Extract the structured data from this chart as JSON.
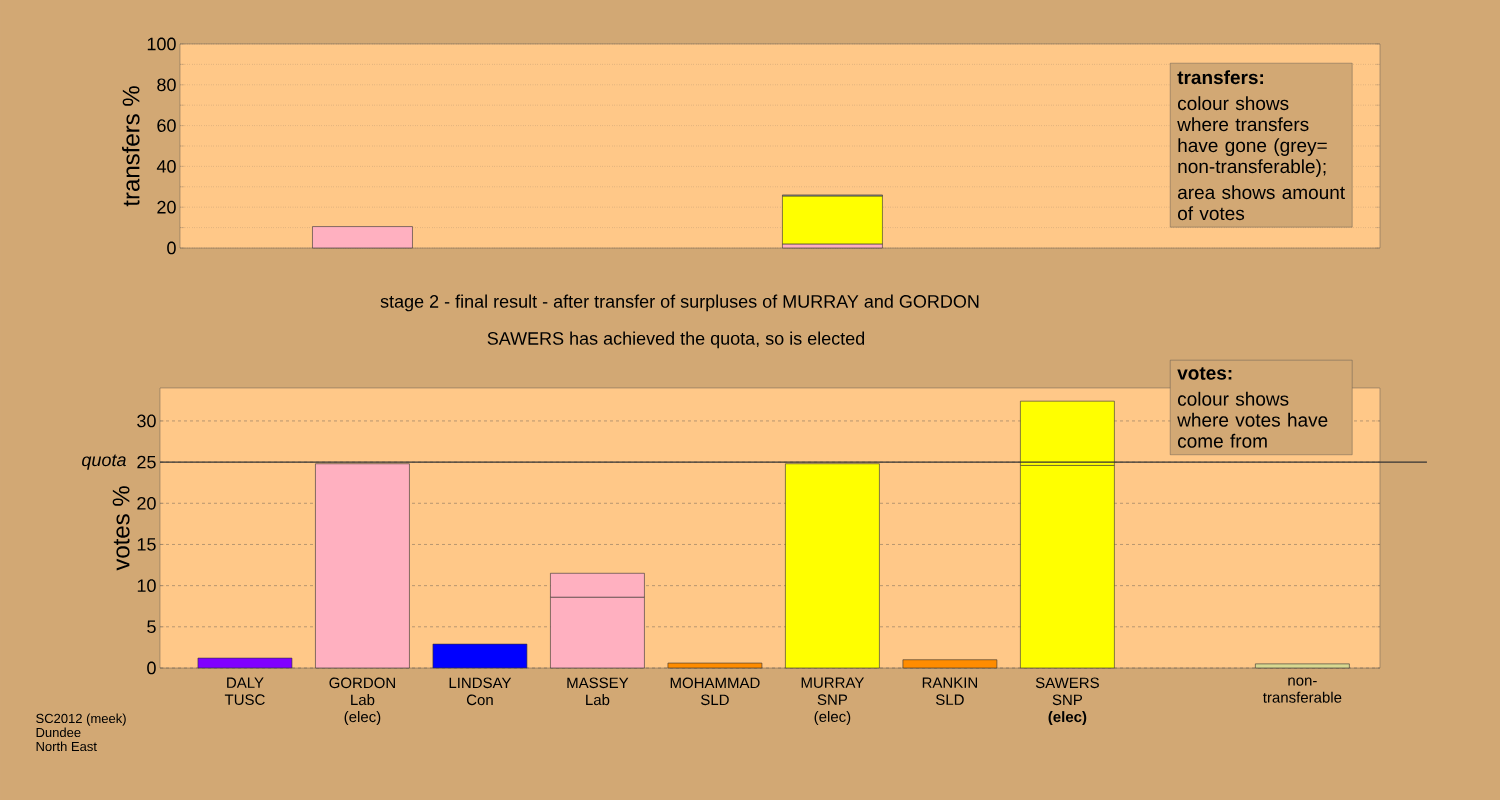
{
  "chart_data": [
    {
      "type": "bar",
      "stacked": true,
      "ylabel": "transfers %",
      "categories": [
        null,
        null,
        null,
        null,
        null,
        null,
        null,
        null,
        null,
        null
      ],
      "series": [
        {
          "color": "#ffb0c0",
          "values": [
            null,
            10.5,
            null,
            null,
            null,
            2,
            null,
            null,
            null,
            null
          ]
        },
        {
          "color": "#ffff00",
          "values": [
            null,
            null,
            null,
            null,
            null,
            23.5,
            null,
            null,
            null,
            null
          ]
        },
        {
          "color": "#a0a0a0",
          "values": [
            null,
            null,
            null,
            null,
            null,
            0.5,
            null,
            null,
            null,
            null
          ]
        }
      ],
      "ylim": [
        0,
        100
      ],
      "yticks": [
        0,
        {
          "value": 10,
          "label": null
        },
        20,
        {
          "value": 30,
          "label": null
        },
        40,
        {
          "value": 50,
          "label": null
        },
        60,
        {
          "value": 70,
          "label": null
        },
        80,
        {
          "value": 90,
          "label": null
        },
        100
      ],
      "grid": "y",
      "tick_labels": "y",
      "annotations": [
        "transfers:",
        "colour shows where transfers have gone (grey= non-transferable);",
        "area shows amount of votes"
      ]
    },
    {
      "type": "bar",
      "stacked": true,
      "title": "stage 2 - final result - after transfer of surpluses of MURRAY and GORDON",
      "subtitle": "SAWERS has achieved the quota, so is elected",
      "ylabel": "votes %",
      "categories": [
        "DALY\nTUSC",
        "GORDON\nLab\n(elec)",
        "LINDSAY\nCon",
        "MASSEY\nLab",
        "MOHAMMAD\nSLD",
        "MURRAY\nSNP\n(elec)",
        "RANKIN\nSLD",
        "SAWERS\nSNP\n**(elec)**",
        null,
        "non-transferable"
      ],
      "series": [
        {
          "colors": [
            "#8000ff",
            "#ffb0c0",
            "#0000ff",
            "#ffb0c0",
            "#ff8c00",
            "#ffff00",
            "#ff8c00",
            "#ffff00",
            null,
            "#d8d890"
          ],
          "values": [
            1.2,
            24.8,
            2.9,
            8.6,
            0.6,
            24.8,
            1.0,
            24.6,
            null,
            0.5
          ]
        },
        {
          "colors": [
            null,
            null,
            null,
            "#ffb0c0",
            null,
            null,
            null,
            "#ffff00",
            null,
            null
          ],
          "values": [
            null,
            null,
            null,
            2.9,
            null,
            null,
            null,
            7.8,
            null,
            null
          ]
        }
      ],
      "ylim": [
        0,
        34
      ],
      "yticks": [
        0,
        5,
        10,
        15,
        20,
        25,
        30
      ],
      "grid": "y",
      "ref_lines": [
        {
          "axis": "y",
          "value": 25,
          "label": "quota"
        }
      ],
      "annotations": [
        "votes:",
        "colour shows where votes have come from",
        "SC2012 (meek)",
        "Dundee",
        "North East"
      ]
    }
  ]
}
